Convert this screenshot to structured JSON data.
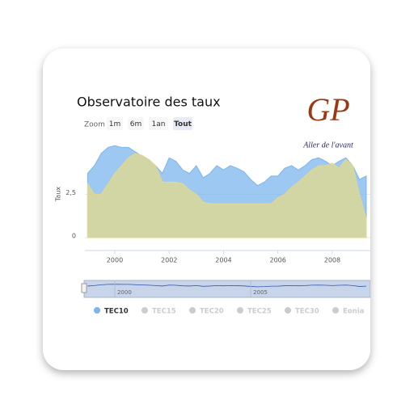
{
  "chart_data": {
    "type": "area",
    "title": "Observatoire des taux",
    "zoom_label": "Zoom",
    "zoom_buttons": [
      "1m",
      "6m",
      "1an",
      "Tout"
    ],
    "zoom_selected": 3,
    "logo": {
      "initials": "GP",
      "slogan": "Aller de l'avant"
    },
    "y_label": "Taux",
    "x": [
      1999,
      1999.25,
      1999.5,
      1999.75,
      2000,
      2000.25,
      2000.5,
      2000.75,
      2001,
      2001.25,
      2001.5,
      2001.75,
      2002,
      2002.25,
      2002.5,
      2002.75,
      2003,
      2003.25,
      2003.5,
      2003.75,
      2004,
      2004.25,
      2004.5,
      2004.75,
      2005,
      2005.25,
      2005.5,
      2005.75,
      2006,
      2006.25,
      2006.5,
      2006.75,
      2007,
      2007.25,
      2007.5,
      2007.75,
      2008,
      2008.25,
      2008.5,
      2008.75,
      2009,
      2009.25
    ],
    "series": [
      {
        "name": "TEC10",
        "color": "#7cb5ec",
        "legend_active": true,
        "values": [
          3.7,
          4.15,
          4.85,
          5.2,
          5.3,
          5.2,
          5.2,
          4.95,
          4.7,
          4.5,
          4.15,
          3.7,
          4.6,
          4.4,
          3.9,
          3.7,
          4.15,
          3.45,
          3.7,
          4.15,
          3.9,
          4.15,
          4.0,
          3.8,
          3.35,
          3.0,
          3.2,
          3.55,
          3.55,
          4.0,
          4.15,
          3.9,
          4.15,
          4.5,
          4.6,
          4.4,
          4.15,
          4.4,
          4.6,
          4.15,
          3.35,
          3.55
        ]
      },
      {
        "name": "Eonia",
        "color": "#e4d98a",
        "legend_active": false,
        "values": [
          3.1,
          2.5,
          2.5,
          3.1,
          3.7,
          4.15,
          4.6,
          4.85,
          4.75,
          4.5,
          4.15,
          3.2,
          3.2,
          3.2,
          3.1,
          2.75,
          2.5,
          2.05,
          1.95,
          1.95,
          1.95,
          1.95,
          1.95,
          1.95,
          1.95,
          1.95,
          1.95,
          1.95,
          2.3,
          2.5,
          2.9,
          3.2,
          3.55,
          3.9,
          4.15,
          4.15,
          4.3,
          4.0,
          4.5,
          4.15,
          2.5,
          1.1
        ]
      }
    ],
    "hidden_series": [
      "TEC15",
      "TEC20",
      "TEC25",
      "TEC30"
    ],
    "xlim": [
      1998.9,
      2009.4
    ],
    "xticks": [
      2000,
      2002,
      2004,
      2006,
      2008
    ],
    "ylim": [
      0,
      5.5
    ],
    "yticks": [
      0,
      {
        "value": 2.5,
        "label": "2,5"
      }
    ],
    "grid": true,
    "navigator_xticks": [
      2000,
      2005
    ]
  }
}
